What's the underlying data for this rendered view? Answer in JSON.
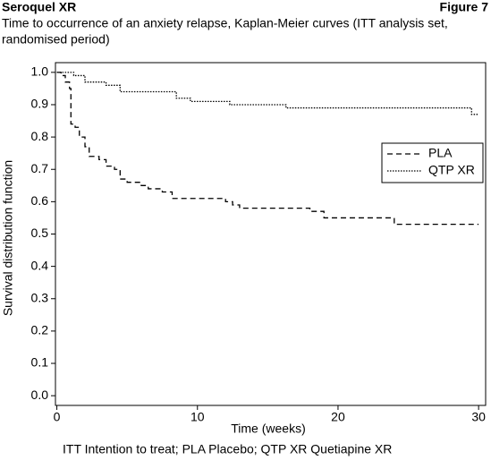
{
  "header": {
    "title": "Seroquel XR",
    "figure": "Figure 7",
    "subtitle_lines": [
      "Time to occurrence of an anxiety relapse, Kaplan-Meier curves (ITT analysis set,",
      "randomised period)"
    ]
  },
  "chart_data": {
    "type": "line",
    "step": "post",
    "xlabel": "Time (weeks)",
    "ylabel": "Survival distribution function",
    "xlim": [
      -0.1,
      30.5
    ],
    "ylim": [
      -0.03,
      1.03
    ],
    "xticks": [
      0,
      10,
      20,
      30
    ],
    "yticks": [
      {
        "value": 0,
        "label": "0.0"
      },
      0.1,
      0.2,
      0.3,
      0.4,
      0.5,
      0.6,
      0.7,
      0.8,
      0.9,
      {
        "value": 1,
        "label": "1.0"
      }
    ],
    "legend_position": "right",
    "series": [
      {
        "name": "PLA",
        "color": "#000000",
        "dash": "dashed",
        "x": [
          0,
          0.3,
          0.6,
          0.9,
          1.0,
          1.3,
          1.6,
          2.0,
          2.3,
          3.0,
          3.5,
          4.1,
          4.5,
          5.0,
          6.0,
          6.5,
          7.5,
          8.2,
          12.0,
          12.5,
          13.0,
          18.0,
          19.0,
          24.0,
          30.0
        ],
        "values": [
          1.0,
          0.99,
          0.97,
          0.95,
          0.84,
          0.83,
          0.8,
          0.77,
          0.74,
          0.73,
          0.71,
          0.7,
          0.67,
          0.66,
          0.65,
          0.64,
          0.63,
          0.61,
          0.6,
          0.59,
          0.58,
          0.57,
          0.55,
          0.53,
          0.53
        ]
      },
      {
        "name": "QTP XR",
        "color": "#000000",
        "dash": "dotted",
        "x": [
          0,
          1.2,
          2.0,
          3.5,
          4.5,
          8.5,
          9.5,
          12.3,
          16.3,
          29.5,
          30.0
        ],
        "values": [
          1.0,
          0.99,
          0.97,
          0.96,
          0.94,
          0.92,
          0.91,
          0.9,
          0.89,
          0.87,
          0.87
        ]
      }
    ]
  },
  "footnote": "ITT Intention to treat; PLA Placebo; QTP XR Quetiapine XR"
}
